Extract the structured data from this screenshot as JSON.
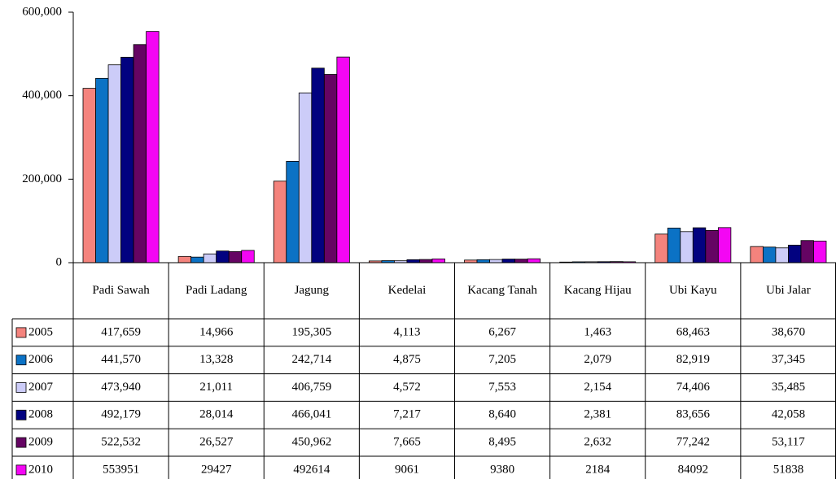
{
  "chart_data": {
    "type": "bar",
    "categories": [
      "Padi Sawah",
      "Padi Ladang",
      "Jagung",
      "Kedelai",
      "Kacang Tanah",
      "Kacang Hijau",
      "Ubi Kayu",
      "Ubi Jalar"
    ],
    "ylim": [
      0,
      600000
    ],
    "yticks": [
      0,
      {
        "value": 200000,
        "label": "200,000"
      },
      {
        "value": 400000,
        "label": "400,000"
      },
      {
        "value": 600000,
        "label": "600,000"
      }
    ],
    "series": [
      {
        "name": "2005",
        "color": "#f4837d",
        "values": [
          417659,
          14966,
          195305,
          4113,
          6267,
          1463,
          68463,
          38670
        ],
        "value_labels": [
          "417,659",
          "14,966",
          "195,305",
          "4,113",
          "6,267",
          "1,463",
          "68,463",
          "38,670"
        ]
      },
      {
        "name": "2006",
        "color": "#0b72c5",
        "values": [
          441570,
          13328,
          242714,
          4875,
          7205,
          2079,
          82919,
          37345
        ],
        "value_labels": [
          "441,570",
          "13,328",
          "242,714",
          "4,875",
          "7,205",
          "2,079",
          "82,919",
          "37,345"
        ]
      },
      {
        "name": "2007",
        "color": "#ccccf8",
        "values": [
          473940,
          21011,
          406759,
          4572,
          7553,
          2154,
          74406,
          35485
        ],
        "value_labels": [
          "473,940",
          "21,011",
          "406,759",
          "4,572",
          "7,553",
          "2,154",
          "74,406",
          "35,485"
        ]
      },
      {
        "name": "2008",
        "color": "#020280",
        "values": [
          492179,
          28014,
          466041,
          7217,
          8640,
          2381,
          83656,
          42058
        ],
        "value_labels": [
          "492,179",
          "28,014",
          "466,041",
          "7,217",
          "8,640",
          "2,381",
          "83,656",
          "42,058"
        ]
      },
      {
        "name": "2009",
        "color": "#650463",
        "values": [
          522532,
          26527,
          450962,
          7665,
          8495,
          2632,
          77242,
          53117
        ],
        "value_labels": [
          "522,532",
          "26,527",
          "450,962",
          "7,665",
          "8,495",
          "2,632",
          "77,242",
          "53,117"
        ]
      },
      {
        "name": "2010",
        "color": "#f406f4",
        "values": [
          553951,
          29427,
          492614,
          9061,
          9380,
          2184,
          84092,
          51838
        ],
        "value_labels": [
          "553951",
          "29427",
          "492614",
          "9061",
          "9380",
          "2184",
          "84092",
          "51838"
        ]
      }
    ]
  }
}
